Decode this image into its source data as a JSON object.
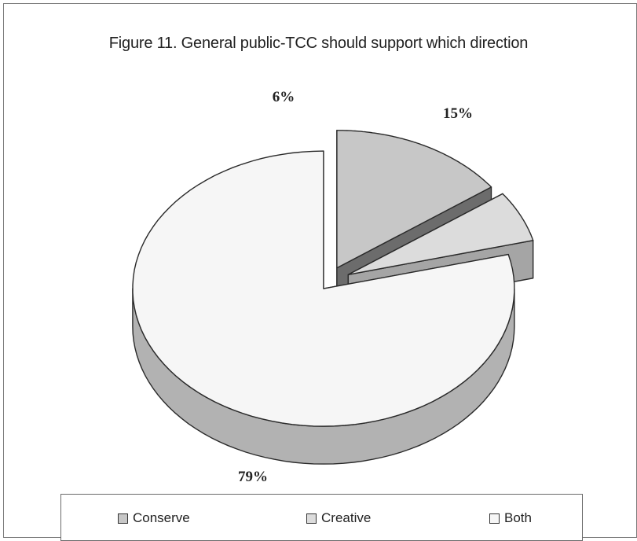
{
  "chart_data": {
    "type": "pie",
    "title": "Figure 11. General public-TCC should support which direction",
    "categories": [
      "Conserve",
      "Creative",
      "Both"
    ],
    "values": [
      15,
      6,
      79
    ],
    "labels": [
      "15%",
      "6%",
      "79%"
    ],
    "colors": [
      "#c7c7c7",
      "#dcdcdc",
      "#f6f6f6"
    ],
    "side_colors": [
      "#6c6c6c",
      "#a5a5a5",
      "#b2b2b2"
    ],
    "legend_position": "bottom",
    "style": "3d-exploded"
  }
}
